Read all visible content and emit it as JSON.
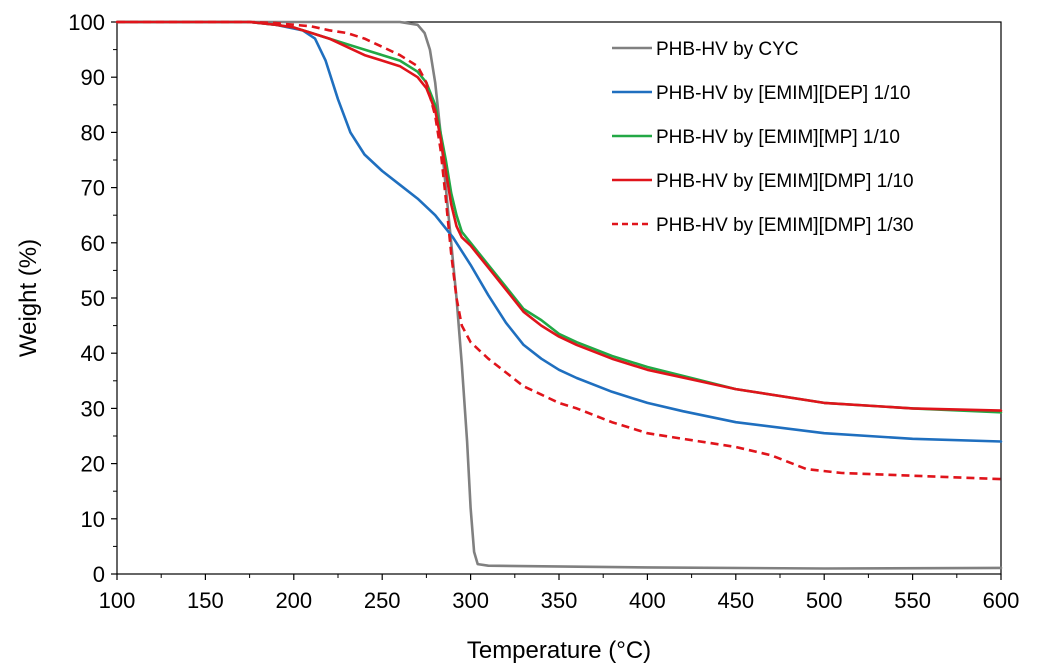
{
  "chart_data": {
    "type": "line",
    "title": "",
    "xlabel": "Temperature (°C)",
    "ylabel": "Weight (%)",
    "xlim": [
      100,
      600
    ],
    "ylim": [
      0,
      100
    ],
    "xticks": [
      100,
      150,
      200,
      250,
      300,
      350,
      400,
      450,
      500,
      550,
      600
    ],
    "yticks": [
      0,
      10,
      20,
      30,
      40,
      50,
      60,
      70,
      80,
      90,
      100
    ],
    "grid": false,
    "legend_position": "top-right",
    "series": [
      {
        "name": "PHB-HV by CYC",
        "color": "#808080",
        "dash": "solid",
        "points": [
          [
            100,
            100
          ],
          [
            200,
            100
          ],
          [
            260,
            100
          ],
          [
            270,
            99.5
          ],
          [
            274,
            98
          ],
          [
            277,
            95
          ],
          [
            280,
            89
          ],
          [
            283,
            80
          ],
          [
            286,
            70
          ],
          [
            289,
            60
          ],
          [
            292,
            50
          ],
          [
            295,
            38
          ],
          [
            298,
            24
          ],
          [
            300,
            12
          ],
          [
            302,
            4
          ],
          [
            304,
            1.8
          ],
          [
            310,
            1.5
          ],
          [
            400,
            1.2
          ],
          [
            500,
            1.0
          ],
          [
            600,
            1.1
          ]
        ]
      },
      {
        "name": "PHB-HV by [EMIM][DEP] 1/10",
        "color": "#1f6fbf",
        "dash": "solid",
        "points": [
          [
            100,
            100
          ],
          [
            175,
            100
          ],
          [
            190,
            99.5
          ],
          [
            205,
            98.5
          ],
          [
            212,
            97
          ],
          [
            218,
            93
          ],
          [
            225,
            86
          ],
          [
            232,
            80
          ],
          [
            240,
            76
          ],
          [
            250,
            73
          ],
          [
            260,
            70.5
          ],
          [
            270,
            68
          ],
          [
            280,
            65
          ],
          [
            290,
            61
          ],
          [
            300,
            56
          ],
          [
            310,
            50.5
          ],
          [
            320,
            45.5
          ],
          [
            330,
            41.5
          ],
          [
            340,
            39
          ],
          [
            350,
            37
          ],
          [
            360,
            35.5
          ],
          [
            380,
            33
          ],
          [
            400,
            31
          ],
          [
            420,
            29.5
          ],
          [
            450,
            27.5
          ],
          [
            500,
            25.5
          ],
          [
            550,
            24.5
          ],
          [
            600,
            24
          ]
        ]
      },
      {
        "name": "PHB-HV by [EMIM][MP] 1/10",
        "color": "#22a845",
        "dash": "solid",
        "points": [
          [
            100,
            100
          ],
          [
            175,
            100
          ],
          [
            190,
            99.5
          ],
          [
            200,
            99
          ],
          [
            210,
            98
          ],
          [
            220,
            97
          ],
          [
            230,
            96
          ],
          [
            240,
            95
          ],
          [
            250,
            94
          ],
          [
            260,
            93
          ],
          [
            270,
            91
          ],
          [
            275,
            89
          ],
          [
            280,
            85
          ],
          [
            283,
            80
          ],
          [
            286,
            75
          ],
          [
            289,
            69
          ],
          [
            292,
            65
          ],
          [
            295,
            62
          ],
          [
            300,
            60
          ],
          [
            305,
            58
          ],
          [
            310,
            56
          ],
          [
            320,
            52
          ],
          [
            330,
            48
          ],
          [
            340,
            46
          ],
          [
            350,
            43.5
          ],
          [
            360,
            42
          ],
          [
            380,
            39.5
          ],
          [
            400,
            37.5
          ],
          [
            450,
            33.5
          ],
          [
            500,
            31
          ],
          [
            550,
            30
          ],
          [
            600,
            29.3
          ]
        ]
      },
      {
        "name": "PHB-HV by [EMIM][DMP] 1/10",
        "color": "#e0141b",
        "dash": "solid",
        "points": [
          [
            100,
            100
          ],
          [
            175,
            100
          ],
          [
            190,
            99.5
          ],
          [
            200,
            99
          ],
          [
            210,
            98
          ],
          [
            220,
            97
          ],
          [
            230,
            95.5
          ],
          [
            240,
            94
          ],
          [
            250,
            93
          ],
          [
            260,
            92
          ],
          [
            270,
            90
          ],
          [
            275,
            88
          ],
          [
            280,
            84
          ],
          [
            283,
            79
          ],
          [
            286,
            73
          ],
          [
            289,
            67
          ],
          [
            292,
            63
          ],
          [
            295,
            61
          ],
          [
            300,
            59.5
          ],
          [
            305,
            57.5
          ],
          [
            310,
            55.5
          ],
          [
            320,
            51.5
          ],
          [
            330,
            47.5
          ],
          [
            340,
            45
          ],
          [
            350,
            43
          ],
          [
            360,
            41.5
          ],
          [
            380,
            39
          ],
          [
            400,
            37
          ],
          [
            450,
            33.5
          ],
          [
            500,
            31
          ],
          [
            550,
            30
          ],
          [
            600,
            29.6
          ]
        ]
      },
      {
        "name": "PHB-HV by [EMIM][DMP] 1/30",
        "color": "#e0141b",
        "dash": "dashed",
        "points": [
          [
            100,
            100
          ],
          [
            175,
            100
          ],
          [
            190,
            99.8
          ],
          [
            200,
            99.5
          ],
          [
            210,
            99.2
          ],
          [
            220,
            98.5
          ],
          [
            230,
            98
          ],
          [
            240,
            97
          ],
          [
            250,
            95.5
          ],
          [
            260,
            94
          ],
          [
            270,
            92
          ],
          [
            275,
            89
          ],
          [
            280,
            83
          ],
          [
            283,
            77
          ],
          [
            286,
            68
          ],
          [
            289,
            58
          ],
          [
            292,
            50
          ],
          [
            295,
            45
          ],
          [
            300,
            42
          ],
          [
            305,
            40.5
          ],
          [
            310,
            39
          ],
          [
            320,
            36.5
          ],
          [
            330,
            34
          ],
          [
            340,
            32.5
          ],
          [
            350,
            31
          ],
          [
            360,
            30
          ],
          [
            380,
            27.5
          ],
          [
            400,
            25.5
          ],
          [
            420,
            24.5
          ],
          [
            450,
            23
          ],
          [
            470,
            21.5
          ],
          [
            490,
            19
          ],
          [
            510,
            18.3
          ],
          [
            550,
            17.8
          ],
          [
            600,
            17.2
          ]
        ]
      }
    ]
  }
}
